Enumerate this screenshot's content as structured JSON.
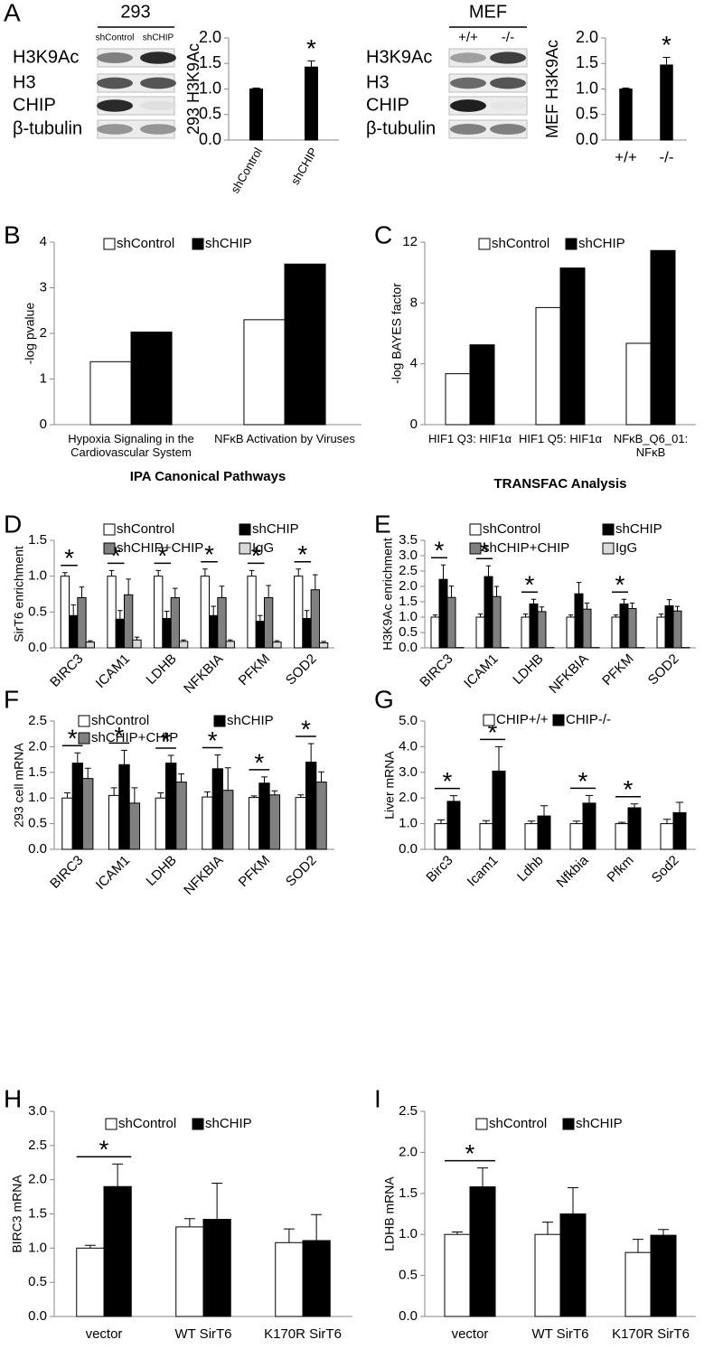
{
  "blots": [
    {
      "panel": "A",
      "title": "293",
      "lanes": [
        "shControl",
        "shCHIP"
      ],
      "rows": [
        "H3K9Ac",
        "H3",
        "CHIP",
        "β-tubulin"
      ]
    },
    {
      "title": "MEF",
      "lanes": [
        "+/+",
        "-/-"
      ],
      "rows": [
        "H3K9Ac",
        "H3",
        "CHIP",
        "β-tubulin"
      ]
    }
  ],
  "chart_data": [
    {
      "type": "bar",
      "ylabel": "293 H3K9Ac",
      "categories": [
        "shControl",
        "shCHIP"
      ],
      "series": [
        {
          "color": "#000000",
          "values": [
            1.0,
            1.43
          ],
          "errors": [
            0.02,
            0.12
          ]
        }
      ],
      "ylim": [
        0,
        2
      ],
      "yticks": [
        {
          "value": 0,
          "label": "0.0"
        },
        0.5,
        {
          "value": 1,
          "label": "1.0"
        },
        1.5,
        {
          "value": 2,
          "label": "2.0"
        }
      ],
      "asterisks": [
        null,
        "*"
      ]
    },
    {
      "type": "bar",
      "ylabel": "MEF H3K9Ac",
      "categories": [
        "+/+",
        "-/-"
      ],
      "series": [
        {
          "color": "#000000",
          "values": [
            1.0,
            1.47
          ],
          "errors": [
            0.02,
            0.15
          ]
        }
      ],
      "ylim": [
        0,
        2
      ],
      "yticks": [
        {
          "value": 0,
          "label": "0.0"
        },
        0.5,
        {
          "value": 1,
          "label": "1.0"
        },
        1.5,
        {
          "value": 2,
          "label": "2.0"
        }
      ],
      "asterisks": [
        null,
        "*"
      ]
    },
    {
      "type": "bar",
      "panel": "B",
      "ylabel": "-log pvalue",
      "xlabel": "IPA Canonical Pathways",
      "categories": [
        "Hypoxia Signaling in the Cardiovascular System",
        "NFκB Activation by Viruses"
      ],
      "series": [
        {
          "name": "shControl",
          "color": "#ffffff",
          "values": [
            1.38,
            2.3
          ]
        },
        {
          "name": "shCHIP",
          "color": "#000000",
          "values": [
            2.03,
            3.52
          ]
        }
      ],
      "ylim": [
        0,
        4
      ],
      "yticks": [
        0,
        1,
        2,
        3,
        4
      ]
    },
    {
      "type": "bar",
      "panel": "C",
      "ylabel": "-log BAYES factor",
      "xlabel": "TRANSFAC Analysis",
      "categories": [
        "HIF1 Q3: HIF1α",
        "HIF1 Q5: HIF1α",
        "NFκB_Q6_01: NFκB"
      ],
      "series": [
        {
          "name": "shControl",
          "color": "#ffffff",
          "values": [
            3.35,
            7.7,
            5.35
          ]
        },
        {
          "name": "shCHIP",
          "color": "#000000",
          "values": [
            5.25,
            10.3,
            11.45
          ]
        }
      ],
      "ylim": [
        0,
        12
      ],
      "yticks": [
        0,
        4,
        8,
        12
      ]
    },
    {
      "type": "bar",
      "panel": "D",
      "ylabel": "SirT6 enrichment",
      "categories": [
        "BIRC3",
        "ICAM1",
        "LDHB",
        "NFKBIA",
        "PFKM",
        "SOD2"
      ],
      "series": [
        {
          "name": "shControl",
          "color": "#ffffff",
          "values": [
            1,
            1,
            1,
            1,
            1,
            1
          ],
          "errors": [
            0.05,
            0.08,
            0.08,
            0.1,
            0.08,
            0.1
          ]
        },
        {
          "name": "shCHIP",
          "color": "#000000",
          "values": [
            0.45,
            0.4,
            0.41,
            0.45,
            0.37,
            0.41
          ],
          "errors": [
            0.15,
            0.12,
            0.1,
            0.13,
            0.08,
            0.11
          ]
        },
        {
          "name": "shCHIP+CHIP",
          "color": "#808080",
          "values": [
            0.7,
            0.74,
            0.7,
            0.7,
            0.7,
            0.81
          ],
          "errors": [
            0.15,
            0.22,
            0.13,
            0.16,
            0.17,
            0.21
          ]
        },
        {
          "name": "IgG",
          "color": "#d9d9d9",
          "values": [
            0.08,
            0.11,
            0.09,
            0.09,
            0.08,
            0.07
          ],
          "errors": [
            0.02,
            0.04,
            0.02,
            0.02,
            0.02,
            0.02
          ]
        }
      ],
      "ylim": [
        0,
        1.5
      ],
      "yticks": [
        {
          "value": 0,
          "label": "0.0"
        },
        0.5,
        {
          "value": 1,
          "label": "1.0"
        },
        1.5
      ],
      "asterisks": [
        "*",
        "*",
        "*",
        "*",
        "*",
        "*"
      ]
    },
    {
      "type": "bar",
      "panel": "E",
      "ylabel": "H3K9Ac enrichment",
      "categories": [
        "BIRC3",
        "ICAM1",
        "LDHB",
        "NFKBIA",
        "PFKM",
        "SOD2"
      ],
      "series": [
        {
          "name": "shControl",
          "color": "#ffffff",
          "values": [
            1,
            1,
            1,
            1,
            1,
            1
          ],
          "errors": [
            0.07,
            0.1,
            0.1,
            0.07,
            0.07,
            0.1
          ]
        },
        {
          "name": "shCHIP",
          "color": "#000000",
          "values": [
            2.23,
            2.32,
            1.43,
            1.76,
            1.43,
            1.37
          ],
          "errors": [
            0.47,
            0.35,
            0.15,
            0.37,
            0.15,
            0.2
          ]
        },
        {
          "name": "shCHIP+CHIP",
          "color": "#808080",
          "values": [
            1.64,
            1.67,
            1.18,
            1.26,
            1.28,
            1.2
          ],
          "errors": [
            0.37,
            0.33,
            0.15,
            0.2,
            0.18,
            0.15
          ]
        },
        {
          "name": "IgG",
          "color": "#d9d9d9",
          "values": [
            0.01,
            0.01,
            0.01,
            0.01,
            0.01,
            0.01
          ]
        }
      ],
      "ylim": [
        0,
        3.5
      ],
      "yticks": [
        {
          "value": 0,
          "label": "0.0"
        },
        0.5,
        {
          "value": 1,
          "label": "1.0"
        },
        1.5,
        {
          "value": 2,
          "label": "2.0"
        },
        2.5,
        {
          "value": 3,
          "label": "3.0"
        },
        3.5
      ],
      "asterisks": [
        "*",
        "*",
        "*",
        null,
        "*",
        null
      ]
    },
    {
      "type": "bar",
      "panel": "F",
      "ylabel": "293 cell mRNA",
      "categories": [
        "BIRC3",
        "ICAM1",
        "LDHB",
        "NFKBIA",
        "PFKM",
        "SOD2"
      ],
      "series": [
        {
          "name": "shControl",
          "color": "#ffffff",
          "values": [
            1.0,
            1.05,
            1.0,
            1.02,
            1.01,
            1.01
          ],
          "errors": [
            0.1,
            0.15,
            0.1,
            0.1,
            0.03,
            0.05
          ]
        },
        {
          "name": "shCHIP",
          "color": "#000000",
          "values": [
            1.68,
            1.65,
            1.68,
            1.57,
            1.29,
            1.7
          ],
          "errors": [
            0.2,
            0.28,
            0.15,
            0.27,
            0.12,
            0.36
          ]
        },
        {
          "name": "shCHIP+CHIP",
          "color": "#808080",
          "values": [
            1.38,
            0.9,
            1.31,
            1.15,
            1.06,
            1.31
          ],
          "errors": [
            0.2,
            0.3,
            0.16,
            0.44,
            0.08,
            0.2
          ]
        }
      ],
      "ylim": [
        0,
        2.5
      ],
      "yticks": [
        {
          "value": 0,
          "label": "0.0"
        },
        0.5,
        {
          "value": 1,
          "label": "1.0"
        },
        1.5,
        {
          "value": 2,
          "label": "2.0"
        },
        2.5
      ],
      "asterisks": [
        "*",
        "*",
        "*",
        "*",
        "*",
        "*"
      ]
    },
    {
      "type": "bar",
      "panel": "G",
      "ylabel": "Liver mRNA",
      "categories": [
        "Birc3",
        "Icam1",
        "Ldhb",
        "Nfkbia",
        "Pfkm",
        "Sod2"
      ],
      "series": [
        {
          "name": "CHIP+/+",
          "color": "#ffffff",
          "values": [
            1,
            1,
            1,
            1,
            1,
            1
          ],
          "errors": [
            0.15,
            0.12,
            0.1,
            0.1,
            0.05,
            0.17
          ]
        },
        {
          "name": "CHIP-/-",
          "color": "#000000",
          "values": [
            1.87,
            3.05,
            1.3,
            1.8,
            1.62,
            1.43
          ],
          "errors": [
            0.22,
            0.95,
            0.4,
            0.3,
            0.15,
            0.4
          ]
        }
      ],
      "ylim": [
        0,
        5
      ],
      "yticks": [
        {
          "value": 0,
          "label": "0.0"
        },
        {
          "value": 1,
          "label": "1.0"
        },
        {
          "value": 2,
          "label": "2.0"
        },
        {
          "value": 3,
          "label": "3.0"
        },
        {
          "value": 4,
          "label": "4.0"
        },
        {
          "value": 5,
          "label": "5.0"
        }
      ],
      "asterisks": [
        "*",
        "*",
        null,
        "*",
        "*",
        null
      ]
    },
    {
      "type": "bar",
      "panel": "H",
      "ylabel": "BIRC3 mRNA",
      "categories": [
        "vector",
        "WT SirT6",
        "K170R SirT6"
      ],
      "series": [
        {
          "name": "shControl",
          "color": "#ffffff",
          "values": [
            1.0,
            1.31,
            1.08
          ],
          "errors": [
            0.04,
            0.12,
            0.2
          ]
        },
        {
          "name": "shCHIP",
          "color": "#000000",
          "values": [
            1.9,
            1.42,
            1.11
          ],
          "errors": [
            0.33,
            0.53,
            0.38
          ]
        }
      ],
      "ylim": [
        0,
        3
      ],
      "yticks": [
        {
          "value": 0,
          "label": "0.0"
        },
        0.5,
        {
          "value": 1,
          "label": "1.0"
        },
        1.5,
        {
          "value": 2,
          "label": "2.0"
        },
        2.5,
        {
          "value": 3,
          "label": "3.0"
        }
      ],
      "asterisks": [
        "*",
        null,
        null
      ]
    },
    {
      "type": "bar",
      "panel": "I",
      "ylabel": "LDHB mRNA",
      "categories": [
        "vector",
        "WT SirT6",
        "K170R SirT6"
      ],
      "series": [
        {
          "name": "shControl",
          "color": "#ffffff",
          "values": [
            1.0,
            1.0,
            0.78
          ],
          "errors": [
            0.03,
            0.15,
            0.16
          ]
        },
        {
          "name": "shCHIP",
          "color": "#000000",
          "values": [
            1.58,
            1.25,
            0.99
          ],
          "errors": [
            0.23,
            0.32,
            0.07
          ]
        }
      ],
      "ylim": [
        0,
        2.5
      ],
      "yticks": [
        {
          "value": 0,
          "label": "0.0"
        },
        0.5,
        {
          "value": 1,
          "label": "1.0"
        },
        1.5,
        {
          "value": 2,
          "label": "2.0"
        },
        2.5
      ],
      "asterisks": [
        "*",
        null,
        null
      ]
    }
  ]
}
